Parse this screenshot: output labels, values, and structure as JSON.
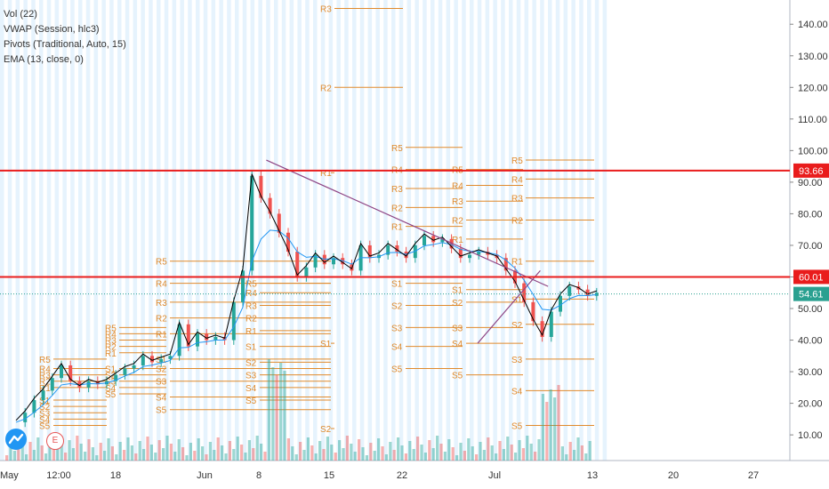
{
  "legend": {
    "items": [
      "Vol (22)",
      "VWAP (Session, hlc3)",
      "Pivots (Traditional, Auto, 15)",
      "EMA (13, close, 0)"
    ]
  },
  "colors": {
    "up": "#26a69a",
    "down": "#ef5350",
    "pivot": "#e08a2c",
    "trend": "#8e4585",
    "ema": "#000000",
    "vwap": "#2196f3",
    "level": "#e91c1c",
    "last": "#2aa090",
    "session_bg": "#e3f2fd"
  },
  "chart_data": {
    "type": "candlestick",
    "y_axis": {
      "range": [
        3,
        150
      ],
      "ticks": [
        10,
        20,
        30,
        40,
        50,
        60,
        70,
        80,
        90,
        100,
        110,
        120,
        130,
        140
      ],
      "tick_labels": [
        "10.00",
        "20.00",
        "30.00",
        "40.00",
        "50.00",
        "60.00",
        "70.00",
        "80.00",
        "90.00",
        "100.00",
        "110.00",
        "120.00",
        "130.00",
        "140.00"
      ]
    },
    "x_axis": {
      "labels": [
        "May",
        "12:00",
        "18",
        "Jun",
        "8",
        "15",
        "22",
        "Jul",
        "13",
        "20",
        "27"
      ]
    },
    "horizontal_levels": [
      {
        "value": 93.66,
        "label": "93.66"
      },
      {
        "value": 60.01,
        "label": "60.01"
      }
    ],
    "last_price": {
      "value": 54.61,
      "label": "54.61"
    },
    "trendlines": [
      {
        "from": [
          "2020-06-09",
          97
        ],
        "to": [
          "2020-07-15",
          57
        ]
      },
      {
        "from": [
          "2020-07-06",
          39
        ],
        "to": [
          "2020-07-14",
          62
        ]
      }
    ],
    "pivot_sets": [
      {
        "labels": [
          "R3",
          "R2"
        ],
        "values": [
          145,
          120
        ]
      },
      {
        "labels": [
          "R5",
          "R4",
          "R3",
          "R2",
          "R1",
          "S1",
          "S2",
          "S3",
          "S4",
          "S5"
        ],
        "values": [
          101,
          94,
          88,
          82,
          76,
          58,
          51,
          44,
          38,
          31
        ]
      },
      {
        "labels": [
          "R5",
          "R4",
          "R3",
          "R2",
          "R1",
          "S1",
          "S2",
          "S3",
          "S4",
          "S5"
        ],
        "values": [
          94,
          89,
          84,
          78,
          72,
          56,
          52,
          44,
          39,
          29
        ]
      },
      {
        "labels": [
          "R5",
          "R4",
          "R3",
          "R2",
          "R1",
          "S1",
          "S2",
          "S3",
          "S4",
          "S5"
        ],
        "values": [
          97,
          91,
          85,
          78,
          65,
          53,
          45,
          34,
          24,
          13
        ]
      },
      {
        "labels": [
          "R1",
          "S1",
          "S2"
        ],
        "values": [
          93,
          39,
          12
        ]
      },
      {
        "labels": [
          "R5",
          "R4",
          "R3",
          "R2",
          "R1",
          "S1",
          "S2",
          "S3",
          "S4",
          "S5"
        ],
        "values": [
          58,
          55,
          51,
          47,
          43,
          38,
          33,
          29,
          25,
          21
        ]
      },
      {
        "labels": [
          "R5",
          "R4",
          "R3",
          "R2",
          "R1",
          "S1",
          "S2",
          "S3",
          "S4",
          "S5"
        ],
        "values": [
          65,
          58,
          52,
          47,
          42,
          34,
          31,
          27,
          22,
          18
        ]
      },
      {
        "labels": [
          "R5",
          "R4",
          "R3",
          "R2",
          "R1",
          "S1",
          "S2",
          "S3",
          "S4",
          "S5"
        ],
        "values": [
          44,
          42,
          40,
          38,
          36,
          31,
          29,
          27,
          25,
          23
        ]
      },
      {
        "labels": [
          "R5",
          "R4",
          "R3",
          "R2",
          "R1",
          "S1",
          "S2",
          "S3",
          "S4",
          "S5"
        ],
        "values": [
          34,
          31,
          29,
          27,
          25,
          21,
          19,
          17,
          15,
          13
        ]
      }
    ]
  },
  "badges": {
    "e_label": "E"
  }
}
